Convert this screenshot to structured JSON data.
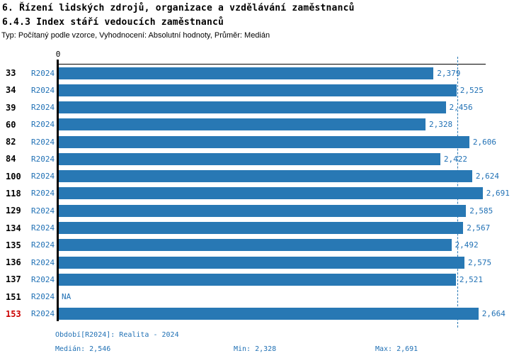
{
  "header": {
    "title": "6. Řízení lidských zdrojů, organizace a vzdělávání zaměstnanců",
    "subtitle": "6.4.3 Index stáří vedoucích zaměstnanců",
    "meta": "Typ: Počítaný podle vzorce, Vyhodnocení: Absolutní hodnoty, Průměr: Medián"
  },
  "colors": {
    "bar_blue": "#2878b4",
    "text_blue": "#2171b5",
    "highlight_red": "#cc0000",
    "axis_black": "#000000"
  },
  "axis": {
    "zero_label": "0"
  },
  "chart_data": {
    "type": "bar",
    "orientation": "horizontal",
    "title": "6.4.3 Index stáří vedoucích zaměstnanců",
    "categories": [
      "33",
      "34",
      "39",
      "60",
      "82",
      "84",
      "100",
      "118",
      "129",
      "134",
      "135",
      "136",
      "137",
      "151",
      "153"
    ],
    "series": [
      {
        "name": "R2024",
        "values": [
          2.379,
          2.525,
          2.456,
          2.328,
          2.606,
          2.422,
          2.624,
          2.691,
          2.585,
          2.567,
          2.492,
          2.575,
          2.521,
          null,
          2.664
        ]
      }
    ],
    "value_labels": [
      "2,379",
      "2,525",
      "2,456",
      "2,328",
      "2,606",
      "2,422",
      "2,624",
      "2,691",
      "2,585",
      "2,567",
      "2,492",
      "2,575",
      "2,521",
      "NA",
      "2,664"
    ],
    "na_label": "NA",
    "highlighted_category": "153",
    "xlim": [
      0,
      2.71
    ],
    "median": 2.546,
    "min": 2.328,
    "max": 2.691,
    "median_line": "dashed",
    "grid": false,
    "legend_position": "none"
  },
  "footer": {
    "period": "Období[R2024]: Realita - 2024",
    "median": "Medián: 2,546",
    "min": "Min: 2,328",
    "max": "Max: 2,691"
  }
}
